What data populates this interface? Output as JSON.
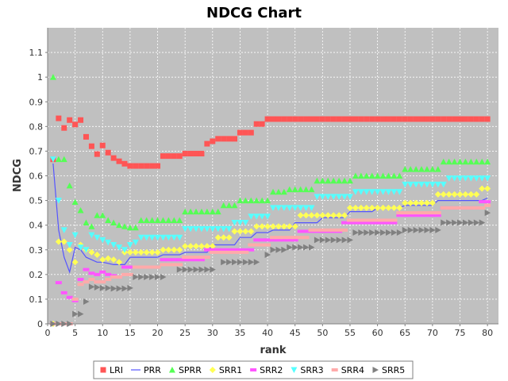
{
  "chart_data": {
    "type": "line",
    "title": "NDCG Chart",
    "xlabel": "rank",
    "ylabel": "NDCG",
    "xlim": [
      0,
      82
    ],
    "ylim": [
      0,
      1.2
    ],
    "xticks": [
      0,
      5,
      10,
      15,
      20,
      25,
      30,
      35,
      40,
      45,
      50,
      55,
      60,
      65,
      70,
      75,
      80
    ],
    "yticks": [
      0,
      0.1,
      0.2,
      0.3,
      0.4,
      0.5,
      0.6,
      0.7,
      0.8,
      0.9,
      1,
      1.1
    ],
    "ytick_labels": [
      "0",
      "0.1",
      "0.2",
      "0.3",
      "0.4",
      "0.5",
      "0.6",
      "0.7",
      "0.8",
      "0.9",
      "1",
      "1.1"
    ],
    "grid": true,
    "legend_position": "bottom",
    "background": "#c0c0c0",
    "series": [
      {
        "name": "LRI",
        "color": "#ff5555",
        "line": false,
        "marker": "square",
        "points": [
          [
            1,
            0.667
          ],
          [
            2,
            0.833
          ],
          [
            3,
            0.794
          ],
          [
            4,
            0.826
          ],
          [
            5,
            0.808
          ],
          [
            6,
            0.826
          ],
          [
            7,
            0.758
          ],
          [
            8,
            0.72
          ],
          [
            9,
            0.688
          ],
          [
            10,
            0.723
          ],
          [
            11,
            0.694
          ],
          [
            12,
            0.672
          ],
          [
            13,
            0.659
          ],
          [
            14,
            0.649
          ],
          [
            15,
            0.64
          ],
          [
            20,
            0.64
          ],
          [
            21,
            0.68
          ],
          [
            24,
            0.68
          ],
          [
            25,
            0.69
          ],
          [
            28,
            0.69
          ],
          [
            29,
            0.73
          ],
          [
            30,
            0.74
          ],
          [
            31,
            0.75
          ],
          [
            34,
            0.75
          ],
          [
            35,
            0.775
          ],
          [
            37,
            0.775
          ],
          [
            38,
            0.81
          ],
          [
            39,
            0.81
          ],
          [
            40,
            0.83
          ],
          [
            80,
            0.83
          ]
        ]
      },
      {
        "name": "PRR",
        "color": "#5555ff",
        "line": true,
        "marker": "none",
        "points": [
          [
            1,
            0.65
          ],
          [
            2,
            0.38
          ],
          [
            3,
            0.27
          ],
          [
            4,
            0.21
          ],
          [
            5,
            0.31
          ],
          [
            6,
            0.3
          ],
          [
            7,
            0.27
          ],
          [
            8,
            0.26
          ],
          [
            9,
            0.25
          ],
          [
            10,
            0.25
          ],
          [
            11,
            0.245
          ],
          [
            12,
            0.24
          ],
          [
            13,
            0.24
          ],
          [
            14,
            0.24
          ],
          [
            15,
            0.27
          ],
          [
            20,
            0.27
          ],
          [
            21,
            0.28
          ],
          [
            24,
            0.28
          ],
          [
            25,
            0.29
          ],
          [
            29,
            0.29
          ],
          [
            30,
            0.32
          ],
          [
            34,
            0.32
          ],
          [
            35,
            0.35
          ],
          [
            37,
            0.35
          ],
          [
            38,
            0.37
          ],
          [
            40,
            0.37
          ],
          [
            41,
            0.38
          ],
          [
            44,
            0.38
          ],
          [
            45,
            0.41
          ],
          [
            49,
            0.41
          ],
          [
            50,
            0.43
          ],
          [
            54,
            0.43
          ],
          [
            55,
            0.455
          ],
          [
            59,
            0.455
          ],
          [
            60,
            0.47
          ],
          [
            64,
            0.47
          ],
          [
            65,
            0.48
          ],
          [
            70,
            0.48
          ],
          [
            71,
            0.5
          ],
          [
            79,
            0.5
          ],
          [
            80,
            0.51
          ]
        ]
      },
      {
        "name": "SPRR",
        "color": "#55ff55",
        "line": false,
        "marker": "triangle-up",
        "points": [
          [
            1,
            1.0
          ],
          [
            2,
            0.667
          ],
          [
            3,
            0.667
          ],
          [
            4,
            0.56
          ],
          [
            5,
            0.494
          ],
          [
            6,
            0.46
          ],
          [
            7,
            0.41
          ],
          [
            8,
            0.395
          ],
          [
            9,
            0.44
          ],
          [
            10,
            0.44
          ],
          [
            11,
            0.42
          ],
          [
            12,
            0.41
          ],
          [
            13,
            0.4
          ],
          [
            14,
            0.395
          ],
          [
            15,
            0.39
          ],
          [
            16,
            0.39
          ],
          [
            17,
            0.42
          ],
          [
            21,
            0.42
          ],
          [
            22,
            0.42
          ],
          [
            23,
            0.42
          ],
          [
            24,
            0.42
          ],
          [
            25,
            0.455
          ],
          [
            30,
            0.455
          ],
          [
            31,
            0.455
          ],
          [
            32,
            0.48
          ],
          [
            34,
            0.48
          ],
          [
            35,
            0.5
          ],
          [
            39,
            0.5
          ],
          [
            40,
            0.5
          ],
          [
            41,
            0.535
          ],
          [
            43,
            0.535
          ],
          [
            44,
            0.545
          ],
          [
            48,
            0.545
          ],
          [
            49,
            0.58
          ],
          [
            55,
            0.58
          ],
          [
            56,
            0.6
          ],
          [
            64,
            0.6
          ],
          [
            65,
            0.627
          ],
          [
            71,
            0.627
          ],
          [
            72,
            0.657
          ],
          [
            80,
            0.657
          ]
        ]
      },
      {
        "name": "SRR1",
        "color": "#ffff55",
        "line": false,
        "marker": "diamond",
        "points": [
          [
            1,
            0.0
          ],
          [
            2,
            0.333
          ],
          [
            3,
            0.333
          ],
          [
            4,
            0.3
          ],
          [
            5,
            0.25
          ],
          [
            6,
            0.32
          ],
          [
            7,
            0.3
          ],
          [
            8,
            0.29
          ],
          [
            9,
            0.28
          ],
          [
            10,
            0.26
          ],
          [
            11,
            0.265
          ],
          [
            12,
            0.26
          ],
          [
            13,
            0.25
          ],
          [
            14,
            0.29
          ],
          [
            20,
            0.29
          ],
          [
            21,
            0.3
          ],
          [
            24,
            0.3
          ],
          [
            25,
            0.315
          ],
          [
            30,
            0.315
          ],
          [
            31,
            0.35
          ],
          [
            33,
            0.35
          ],
          [
            34,
            0.375
          ],
          [
            37,
            0.375
          ],
          [
            38,
            0.395
          ],
          [
            45,
            0.395
          ],
          [
            46,
            0.44
          ],
          [
            54,
            0.44
          ],
          [
            55,
            0.47
          ],
          [
            64,
            0.47
          ],
          [
            65,
            0.49
          ],
          [
            70,
            0.49
          ],
          [
            71,
            0.525
          ],
          [
            78,
            0.525
          ],
          [
            79,
            0.548
          ],
          [
            80,
            0.548
          ]
        ]
      },
      {
        "name": "SRR2",
        "color": "#ff55ff",
        "line": false,
        "marker": "dash",
        "points": [
          [
            1,
            0.0
          ],
          [
            2,
            0.167
          ],
          [
            3,
            0.126
          ],
          [
            4,
            0.107
          ],
          [
            5,
            0.094
          ],
          [
            6,
            0.18
          ],
          [
            7,
            0.22
          ],
          [
            8,
            0.205
          ],
          [
            9,
            0.2
          ],
          [
            10,
            0.21
          ],
          [
            11,
            0.2
          ],
          [
            12,
            0.195
          ],
          [
            13,
            0.19
          ],
          [
            14,
            0.23
          ],
          [
            20,
            0.23
          ],
          [
            21,
            0.26
          ],
          [
            28,
            0.26
          ],
          [
            29,
            0.3
          ],
          [
            37,
            0.3
          ],
          [
            38,
            0.34
          ],
          [
            45,
            0.34
          ],
          [
            46,
            0.375
          ],
          [
            53,
            0.375
          ],
          [
            54,
            0.41
          ],
          [
            63,
            0.41
          ],
          [
            64,
            0.44
          ],
          [
            71,
            0.44
          ],
          [
            72,
            0.47
          ],
          [
            78,
            0.47
          ],
          [
            79,
            0.495
          ],
          [
            80,
            0.495
          ]
        ]
      },
      {
        "name": "SRR3",
        "color": "#55ffff",
        "line": false,
        "marker": "triangle-down",
        "points": [
          [
            1,
            0.667
          ],
          [
            2,
            0.5
          ],
          [
            3,
            0.38
          ],
          [
            4,
            0.32
          ],
          [
            5,
            0.36
          ],
          [
            6,
            0.31
          ],
          [
            7,
            0.3
          ],
          [
            8,
            0.36
          ],
          [
            9,
            0.35
          ],
          [
            10,
            0.34
          ],
          [
            11,
            0.33
          ],
          [
            12,
            0.32
          ],
          [
            13,
            0.31
          ],
          [
            14,
            0.3
          ],
          [
            15,
            0.32
          ],
          [
            16,
            0.33
          ],
          [
            17,
            0.35
          ],
          [
            24,
            0.35
          ],
          [
            25,
            0.385
          ],
          [
            33,
            0.385
          ],
          [
            34,
            0.41
          ],
          [
            36,
            0.41
          ],
          [
            37,
            0.435
          ],
          [
            40,
            0.435
          ],
          [
            41,
            0.47
          ],
          [
            48,
            0.47
          ],
          [
            49,
            0.515
          ],
          [
            55,
            0.515
          ],
          [
            56,
            0.535
          ],
          [
            64,
            0.535
          ],
          [
            65,
            0.565
          ],
          [
            72,
            0.565
          ],
          [
            73,
            0.59
          ],
          [
            80,
            0.59
          ]
        ]
      },
      {
        "name": "SRR4",
        "color": "#ffaaaa",
        "line": false,
        "marker": "dash",
        "points": [
          [
            1,
            0.0
          ],
          [
            2,
            0.0
          ],
          [
            3,
            0.0
          ],
          [
            4,
            0.0
          ],
          [
            5,
            0.1
          ],
          [
            6,
            0.16
          ],
          [
            7,
            0.17
          ],
          [
            8,
            0.18
          ],
          [
            9,
            0.17
          ],
          [
            10,
            0.17
          ],
          [
            11,
            0.18
          ],
          [
            12,
            0.19
          ],
          [
            13,
            0.19
          ],
          [
            14,
            0.2
          ],
          [
            15,
            0.2
          ],
          [
            16,
            0.23
          ],
          [
            20,
            0.23
          ],
          [
            21,
            0.24
          ],
          [
            24,
            0.24
          ],
          [
            25,
            0.27
          ],
          [
            29,
            0.27
          ],
          [
            30,
            0.29
          ],
          [
            36,
            0.29
          ],
          [
            37,
            0.32
          ],
          [
            40,
            0.32
          ],
          [
            41,
            0.35
          ],
          [
            47,
            0.35
          ],
          [
            48,
            0.38
          ],
          [
            54,
            0.38
          ],
          [
            55,
            0.42
          ],
          [
            63,
            0.42
          ],
          [
            64,
            0.45
          ],
          [
            71,
            0.45
          ],
          [
            72,
            0.47
          ],
          [
            79,
            0.47
          ],
          [
            80,
            0.48
          ]
        ]
      },
      {
        "name": "SRR5",
        "color": "#808080",
        "line": false,
        "marker": "triangle-right",
        "points": [
          [
            1,
            0.0
          ],
          [
            2,
            0.0
          ],
          [
            3,
            0.0
          ],
          [
            4,
            0.0
          ],
          [
            5,
            0.04
          ],
          [
            6,
            0.04
          ],
          [
            7,
            0.09
          ],
          [
            8,
            0.15
          ],
          [
            9,
            0.148
          ],
          [
            10,
            0.145
          ],
          [
            11,
            0.145
          ],
          [
            12,
            0.143
          ],
          [
            13,
            0.143
          ],
          [
            14,
            0.143
          ],
          [
            15,
            0.145
          ],
          [
            16,
            0.19
          ],
          [
            20,
            0.19
          ],
          [
            21,
            0.19
          ],
          [
            24,
            0.22
          ],
          [
            29,
            0.22
          ],
          [
            30,
            0.22
          ],
          [
            32,
            0.25
          ],
          [
            37,
            0.25
          ],
          [
            38,
            0.25
          ],
          [
            40,
            0.28
          ],
          [
            41,
            0.3
          ],
          [
            43,
            0.3
          ],
          [
            44,
            0.31
          ],
          [
            48,
            0.31
          ],
          [
            49,
            0.34
          ],
          [
            55,
            0.34
          ],
          [
            56,
            0.37
          ],
          [
            64,
            0.37
          ],
          [
            65,
            0.38
          ],
          [
            71,
            0.38
          ],
          [
            72,
            0.41
          ],
          [
            79,
            0.41
          ],
          [
            80,
            0.45
          ]
        ]
      }
    ]
  }
}
